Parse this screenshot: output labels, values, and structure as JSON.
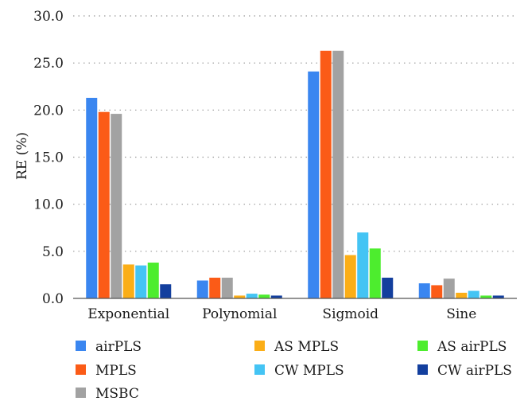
{
  "chart_data": {
    "type": "bar",
    "ylabel": "RE (%)",
    "ylim": [
      0,
      30
    ],
    "yticks": [
      "0.0",
      "5.0",
      "10.0",
      "15.0",
      "20.0",
      "25.0",
      "30.0"
    ],
    "grid": true,
    "legend_position": "bottom",
    "categories": [
      "Exponential",
      "Polynomial",
      "Sigmoid",
      "Sine"
    ],
    "series": [
      {
        "name": "airPLS",
        "color": "#3a86f0",
        "values": [
          21.3,
          1.9,
          24.1,
          1.6
        ]
      },
      {
        "name": "MPLS",
        "color": "#fb5b17",
        "values": [
          19.8,
          2.2,
          26.3,
          1.4
        ]
      },
      {
        "name": "MSBC",
        "color": "#a2a2a2",
        "values": [
          19.6,
          2.2,
          26.3,
          2.1
        ]
      },
      {
        "name": "AS MPLS",
        "color": "#fbae17",
        "values": [
          3.6,
          0.3,
          4.6,
          0.6
        ]
      },
      {
        "name": "CW MPLS",
        "color": "#44c4f4",
        "values": [
          3.5,
          0.5,
          7.0,
          0.8
        ]
      },
      {
        "name": "AS airPLS",
        "color": "#4ded2e",
        "values": [
          3.8,
          0.4,
          5.3,
          0.3
        ]
      },
      {
        "name": "CW airPLS",
        "color": "#133f9e",
        "values": [
          1.5,
          0.3,
          2.2,
          0.3
        ]
      }
    ],
    "legend_layout": [
      [
        "airPLS",
        "MPLS",
        "MSBC"
      ],
      [
        "AS MPLS",
        "CW MPLS"
      ],
      [
        "AS airPLS",
        "CW airPLS"
      ]
    ]
  }
}
